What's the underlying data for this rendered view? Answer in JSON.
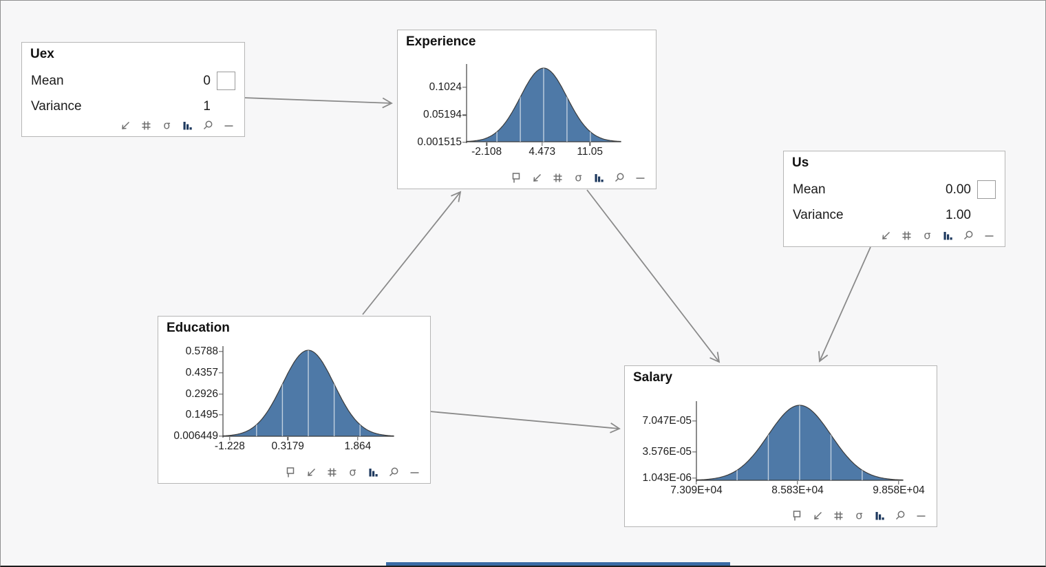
{
  "window": {
    "background": "#f7f7f8",
    "border_color": "#8f8f8f",
    "bottom_bar_color": "#3a6ba5"
  },
  "palette": {
    "curve_fill": "#4e79a7",
    "curve_stroke": "#3b3b3b",
    "arrow": "#8a8a8a",
    "icon_gray": "#6f6f6f",
    "icon_bars": "#1f3a5f"
  },
  "nodes": {
    "uex": {
      "title": "Uex",
      "rows": [
        {
          "label": "Mean",
          "value": "0",
          "has_checkbox": true
        },
        {
          "label": "Variance",
          "value": "1",
          "has_checkbox": false
        }
      ],
      "toolbar": [
        "resize-arrow",
        "grid",
        "sigma",
        "histogram",
        "magnifier",
        "minus"
      ]
    },
    "experience": {
      "title": "Experience",
      "plot": {
        "y_ticks": [
          "0.1024",
          "0.05194",
          "0.001515"
        ],
        "x_ticks": [
          "-2.108",
          "4.473",
          "11.05"
        ]
      },
      "toolbar": [
        "flag",
        "resize-arrow",
        "grid",
        "sigma",
        "histogram",
        "magnifier",
        "minus"
      ]
    },
    "us": {
      "title": "Us",
      "rows": [
        {
          "label": "Mean",
          "value": "0.00",
          "has_checkbox": true
        },
        {
          "label": "Variance",
          "value": "1.00",
          "has_checkbox": false
        }
      ],
      "toolbar": [
        "resize-arrow",
        "grid",
        "sigma",
        "histogram",
        "magnifier",
        "minus"
      ]
    },
    "education": {
      "title": "Education",
      "plot": {
        "y_ticks": [
          "0.5788",
          "0.4357",
          "0.2926",
          "0.1495",
          "0.006449"
        ],
        "x_ticks": [
          "-1.228",
          "0.3179",
          "1.864"
        ]
      },
      "toolbar": [
        "flag",
        "resize-arrow",
        "grid",
        "sigma",
        "histogram",
        "magnifier",
        "minus"
      ]
    },
    "salary": {
      "title": "Salary",
      "plot": {
        "y_ticks": [
          "7.047E-05",
          "3.576E-05",
          "1.043E-06"
        ],
        "x_ticks": [
          "7.309E+04",
          "8.583E+04",
          "9.858E+04"
        ]
      },
      "toolbar": [
        "flag",
        "resize-arrow",
        "grid",
        "sigma",
        "histogram",
        "magnifier",
        "minus"
      ]
    }
  },
  "edges": [
    {
      "from": "Uex",
      "to": "Experience"
    },
    {
      "from": "Education",
      "to": "Experience"
    },
    {
      "from": "Experience",
      "to": "Salary"
    },
    {
      "from": "Us",
      "to": "Salary"
    },
    {
      "from": "Education",
      "to": "Salary"
    }
  ],
  "chart_data": [
    {
      "type": "area",
      "shape": "normal-density",
      "title": "Experience",
      "y_ticks": [
        0.1024,
        0.05194,
        0.001515
      ],
      "x_ticks": [
        -2.108,
        4.473,
        11.05
      ],
      "legend": "none",
      "grid": "off"
    },
    {
      "type": "area",
      "shape": "normal-density",
      "title": "Education",
      "y_ticks": [
        0.5788,
        0.4357,
        0.2926,
        0.1495,
        0.006449
      ],
      "x_ticks": [
        -1.228,
        0.3179,
        1.864
      ],
      "legend": "none",
      "grid": "off"
    },
    {
      "type": "area",
      "shape": "normal-density",
      "title": "Salary",
      "y_ticks": [
        7.047e-05,
        3.576e-05,
        1.043e-06
      ],
      "x_ticks": [
        73090,
        85830,
        98580
      ],
      "legend": "none",
      "grid": "off"
    }
  ]
}
